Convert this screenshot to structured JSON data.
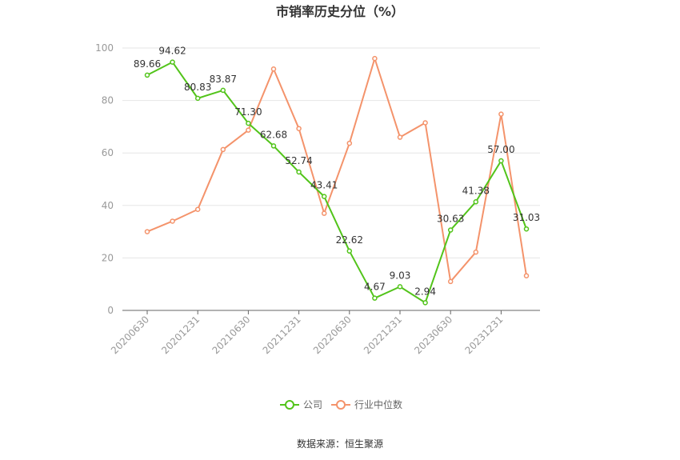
{
  "chart_data": {
    "type": "line",
    "title": "市销率历史分位（%）",
    "source": "数据来源：恒生聚源",
    "ylim": [
      0,
      100
    ],
    "yticks": [
      "0",
      "20",
      "40",
      "60",
      "80",
      "100"
    ],
    "categories": [
      "20200630",
      "20200930",
      "20201231",
      "20210331",
      "20210630",
      "20210930",
      "20211231",
      "20220331",
      "20220630",
      "20220930",
      "20221231",
      "20230331",
      "20230630",
      "20230930",
      "20231231",
      "20240331"
    ],
    "xtick_labels": [
      "20200630",
      "20201231",
      "20210630",
      "20211231",
      "20220630",
      "20221231",
      "20230630",
      "20231231"
    ],
    "series": [
      {
        "name": "公司",
        "color": "#52c41a",
        "values": [
          89.66,
          94.62,
          80.83,
          83.87,
          71.3,
          62.68,
          52.74,
          43.41,
          22.62,
          4.67,
          9.03,
          2.94,
          30.63,
          41.38,
          57.0,
          31.03
        ],
        "labels": [
          "89.66",
          "94.62",
          "80.83",
          "83.87",
          "71.30",
          "62.68",
          "52.74",
          "43.41",
          "22.62",
          "4.67",
          "9.03",
          "2.94",
          "30.63",
          "41.38",
          "57.00",
          "31.03"
        ]
      },
      {
        "name": "行业中位数",
        "color": "#f4936b",
        "values": [
          30.0,
          34.0,
          38.5,
          61.3,
          68.7,
          92.0,
          69.3,
          37.0,
          63.7,
          96.0,
          66.0,
          71.5,
          11.0,
          22.2,
          74.8,
          13.2
        ]
      }
    ],
    "grid": true,
    "legend_position": "bottom-center"
  }
}
